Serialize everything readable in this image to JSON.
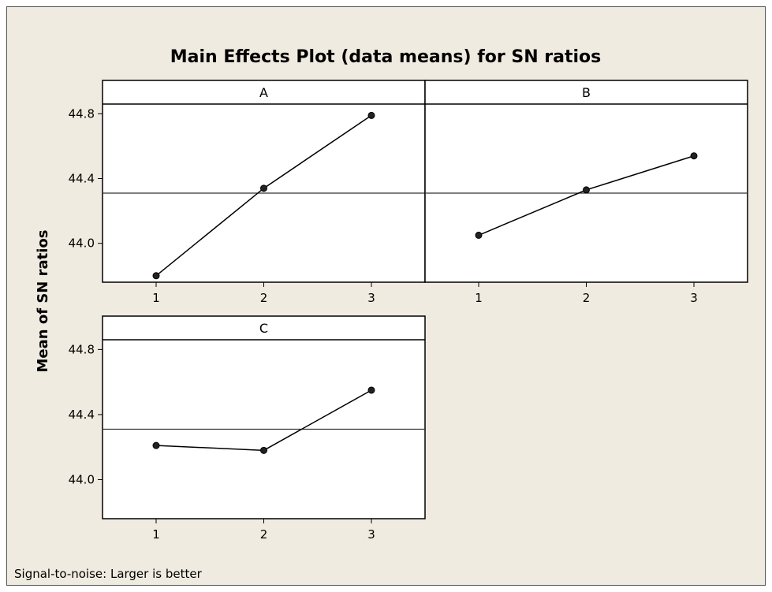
{
  "chart_data": {
    "type": "line",
    "title": "Main Effects Plot (data means) for SN ratios",
    "ylabel": "Mean of SN ratios",
    "footnote": "Signal-to-noise: Larger is better",
    "ylim": [
      43.76,
      44.86
    ],
    "yticks": [
      44.0,
      44.4,
      44.8
    ],
    "ytick_labels": [
      "44.0",
      "44.4",
      "44.8"
    ],
    "categories": [
      "1",
      "2",
      "3"
    ],
    "mean_line": 44.31,
    "grid": false,
    "panels": [
      {
        "name": "A",
        "values": [
          43.8,
          44.34,
          44.79
        ]
      },
      {
        "name": "B",
        "values": [
          44.05,
          44.33,
          44.54
        ]
      },
      {
        "name": "C",
        "values": [
          44.21,
          44.18,
          44.55
        ]
      }
    ],
    "colors": {
      "background": "#f0ebe0",
      "plot": "#ffffff",
      "line": "#000000",
      "reference": "#333333"
    }
  }
}
